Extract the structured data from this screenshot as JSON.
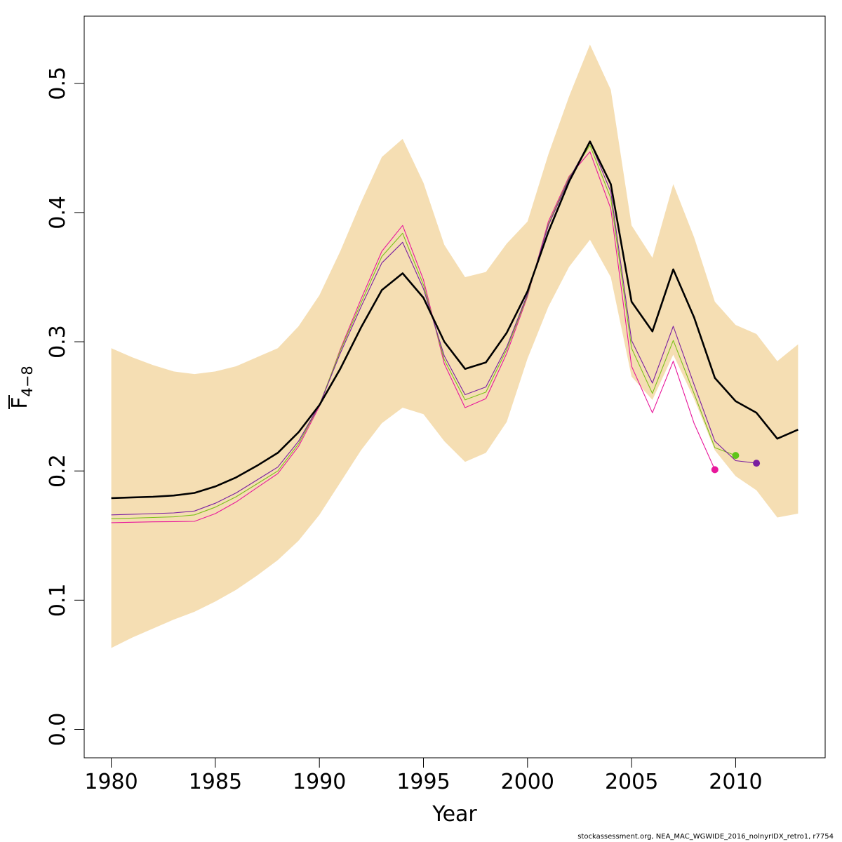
{
  "chart_data": {
    "type": "line",
    "title": "",
    "xlabel": "Year",
    "ylabel_main": "F",
    "ylabel_sub": "4−8",
    "xlim": [
      1978.7,
      2014.3
    ],
    "ylim": [
      -0.022,
      0.552
    ],
    "xticks": [
      "1980",
      "1985",
      "1990",
      "1995",
      "2000",
      "2005",
      "2010"
    ],
    "xtick_values": [
      1980,
      1985,
      1990,
      1995,
      2000,
      2005,
      2010
    ],
    "yticks": [
      "0.0",
      "0.1",
      "0.2",
      "0.3",
      "0.4",
      "0.5"
    ],
    "ytick_values": [
      0.0,
      0.1,
      0.2,
      0.3,
      0.4,
      0.5
    ],
    "years": [
      1980,
      1981,
      1982,
      1983,
      1984,
      1985,
      1986,
      1987,
      1988,
      1989,
      1990,
      1991,
      1992,
      1993,
      1994,
      1995,
      1996,
      1997,
      1998,
      1999,
      2000,
      2001,
      2002,
      2003,
      2004,
      2005,
      2006,
      2007,
      2008,
      2009,
      2010,
      2011,
      2012,
      2013
    ],
    "confidence_band": {
      "color": "#f5deb3",
      "upper": [
        0.295,
        0.288,
        0.282,
        0.277,
        0.275,
        0.277,
        0.281,
        0.288,
        0.295,
        0.312,
        0.336,
        0.37,
        0.408,
        0.443,
        0.457,
        0.423,
        0.375,
        0.35,
        0.354,
        0.376,
        0.393,
        0.445,
        0.49,
        0.53,
        0.495,
        0.39,
        0.365,
        0.422,
        0.381,
        0.331,
        0.313,
        0.306,
        0.285,
        0.298
      ],
      "lower": [
        0.063,
        0.071,
        0.078,
        0.085,
        0.091,
        0.099,
        0.108,
        0.119,
        0.131,
        0.146,
        0.166,
        0.191,
        0.216,
        0.237,
        0.249,
        0.244,
        0.223,
        0.207,
        0.214,
        0.238,
        0.287,
        0.327,
        0.358,
        0.379,
        0.35,
        0.273,
        0.255,
        0.29,
        0.256,
        0.216,
        0.196,
        0.185,
        0.164,
        0.167
      ]
    },
    "series": [
      {
        "color": "#000000",
        "years": [
          1980,
          1981,
          1982,
          1983,
          1984,
          1985,
          1986,
          1987,
          1988,
          1989,
          1990,
          1991,
          1992,
          1993,
          1994,
          1995,
          1996,
          1997,
          1998,
          1999,
          2000,
          2001,
          2002,
          2003,
          2004,
          2005,
          2006,
          2007,
          2008,
          2009,
          2010,
          2011,
          2012,
          2013
        ],
        "values": [
          0.179,
          0.1795,
          0.18,
          0.181,
          0.183,
          0.188,
          0.195,
          0.204,
          0.214,
          0.23,
          0.251,
          0.279,
          0.311,
          0.34,
          0.353,
          0.334,
          0.3,
          0.279,
          0.284,
          0.307,
          0.339,
          0.385,
          0.424,
          0.455,
          0.422,
          0.331,
          0.308,
          0.356,
          0.319,
          0.272,
          0.254,
          0.245,
          0.225,
          0.232
        ]
      },
      {
        "color": "#7a1fa0",
        "years": [
          1980,
          1981,
          1982,
          1983,
          1984,
          1985,
          1986,
          1987,
          1988,
          1989,
          1990,
          1991,
          1992,
          1993,
          1994,
          1995,
          1996,
          1997,
          1998,
          1999,
          2000,
          2001,
          2002,
          2003,
          2004,
          2005,
          2006,
          2007,
          2008,
          2009,
          2010,
          2011
        ],
        "values": [
          0.166,
          0.1665,
          0.167,
          0.1675,
          0.169,
          0.175,
          0.183,
          0.193,
          0.203,
          0.223,
          0.251,
          0.291,
          0.327,
          0.361,
          0.377,
          0.341,
          0.289,
          0.259,
          0.265,
          0.296,
          0.337,
          0.39,
          0.426,
          0.455,
          0.416,
          0.301,
          0.268,
          0.312,
          0.267,
          0.223,
          0.208,
          0.206
        ]
      },
      {
        "color": "#7cc11b",
        "years": [
          1980,
          1981,
          1982,
          1983,
          1984,
          1985,
          1986,
          1987,
          1988,
          1989,
          1990,
          1991,
          1992,
          1993,
          1994,
          1995,
          1996,
          1997,
          1998,
          1999,
          2000,
          2001,
          2002,
          2003,
          2004,
          2005,
          2006,
          2007,
          2008,
          2009,
          2010
        ],
        "values": [
          0.163,
          0.1635,
          0.164,
          0.1645,
          0.166,
          0.172,
          0.18,
          0.19,
          0.2,
          0.221,
          0.251,
          0.293,
          0.33,
          0.366,
          0.384,
          0.344,
          0.286,
          0.255,
          0.261,
          0.294,
          0.336,
          0.391,
          0.427,
          0.452,
          0.411,
          0.295,
          0.26,
          0.301,
          0.26,
          0.218,
          0.212
        ]
      },
      {
        "color": "#e8179b",
        "years": [
          1980,
          1981,
          1982,
          1983,
          1984,
          1985,
          1986,
          1987,
          1988,
          1989,
          1990,
          1991,
          1992,
          1993,
          1994,
          1995,
          1996,
          1997,
          1998,
          1999,
          2000,
          2001,
          2002,
          2003,
          2004,
          2005,
          2006,
          2007,
          2008,
          2009
        ],
        "values": [
          0.16,
          0.1603,
          0.1606,
          0.1608,
          0.161,
          0.167,
          0.176,
          0.187,
          0.198,
          0.219,
          0.25,
          0.294,
          0.333,
          0.37,
          0.39,
          0.348,
          0.283,
          0.249,
          0.256,
          0.291,
          0.335,
          0.393,
          0.428,
          0.447,
          0.403,
          0.281,
          0.245,
          0.285,
          0.237,
          0.201
        ]
      }
    ],
    "endpoints": [
      {
        "year": 2009,
        "value": 0.201,
        "color": "#e8179b"
      },
      {
        "year": 2010,
        "value": 0.212,
        "color": "#5fc41a"
      },
      {
        "year": 2011,
        "value": 0.206,
        "color": "#7a1fa0"
      }
    ],
    "grid": false,
    "legend": "none"
  },
  "footer": "stockassessment.org, NEA_MAC_WGWIDE_2016_nolnyrIDX_retro1, r7754"
}
